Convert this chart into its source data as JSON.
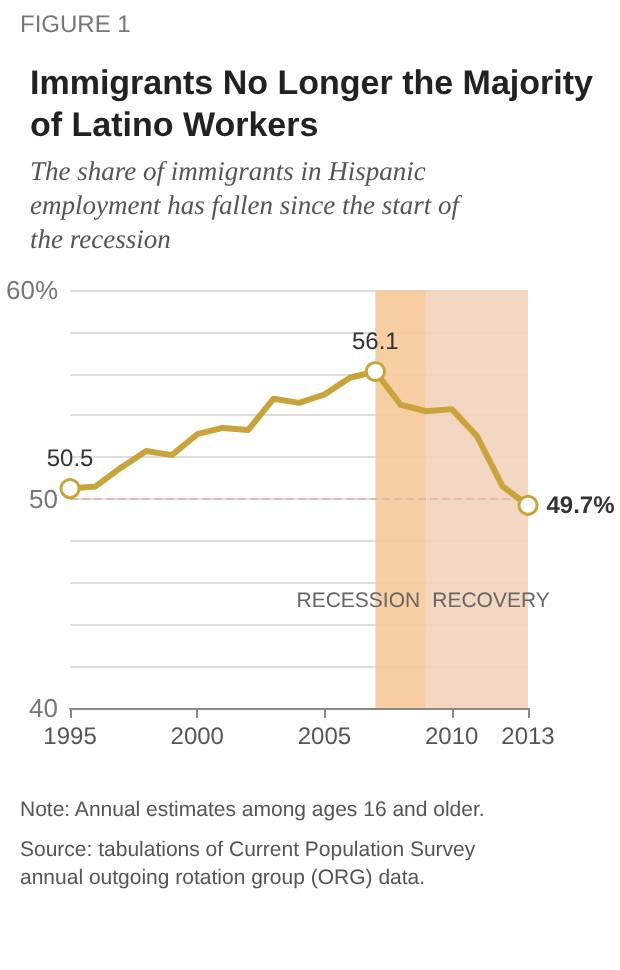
{
  "chart_data": {
    "type": "line",
    "title": "Immigrants No Longer the Majority of Latino Workers",
    "subtitle": "The share of immigrants in Hispanic employment has fallen since the start of the recession",
    "annotations": [
      "FIGURE 1",
      "Note: Annual estimates among ages 16 and older.",
      "Source: tabulations of Current Population Survey annual outgoing rotation group (ORG) data."
    ],
    "x": [
      1995,
      1996,
      1997,
      1998,
      1999,
      2000,
      2001,
      2002,
      2003,
      2004,
      2005,
      2006,
      2007,
      2008,
      2009,
      2010,
      2011,
      2012,
      2013
    ],
    "series": [
      {
        "color": "#c9a43a",
        "values": [
          50.5,
          50.6,
          51.5,
          52.3,
          52.1,
          53.1,
          53.4,
          53.3,
          54.8,
          54.6,
          55.0,
          55.8,
          56.1,
          54.5,
          54.2,
          54.3,
          53.0,
          50.6,
          49.7
        ],
        "value_labels": [
          "50.5",
          null,
          null,
          null,
          null,
          null,
          null,
          null,
          null,
          null,
          null,
          null,
          "56.1",
          null,
          null,
          null,
          null,
          null,
          "49.7%"
        ]
      }
    ],
    "xlim": [
      1995,
      2013
    ],
    "xticks": [
      1995,
      2000,
      2005,
      2010,
      2013
    ],
    "ylim": [
      40,
      60
    ],
    "yticks": [
      40,
      {
        "value": 42,
        "label": null
      },
      {
        "value": 44,
        "label": null
      },
      {
        "value": 46,
        "label": null
      },
      {
        "value": 48,
        "label": null
      },
      50,
      {
        "value": 52,
        "label": null
      },
      {
        "value": 54,
        "label": null
      },
      {
        "value": 56,
        "label": null
      },
      {
        "value": 58,
        "label": null
      },
      {
        "value": 60,
        "label": "60%"
      }
    ],
    "grid": "y",
    "line_style": "solid",
    "ref_lines": [
      {
        "axis": "y",
        "value": 50,
        "color": "#e8b8a8",
        "line_style": "dashed"
      }
    ],
    "bands": [
      {
        "axis": "x",
        "from": 2007,
        "to": 2009,
        "label": "RECESSION",
        "color": "#f7c99a"
      },
      {
        "axis": "x",
        "from": 2009,
        "to": 2013,
        "label": "RECOVERY",
        "color": "#f2d3bc"
      }
    ]
  }
}
